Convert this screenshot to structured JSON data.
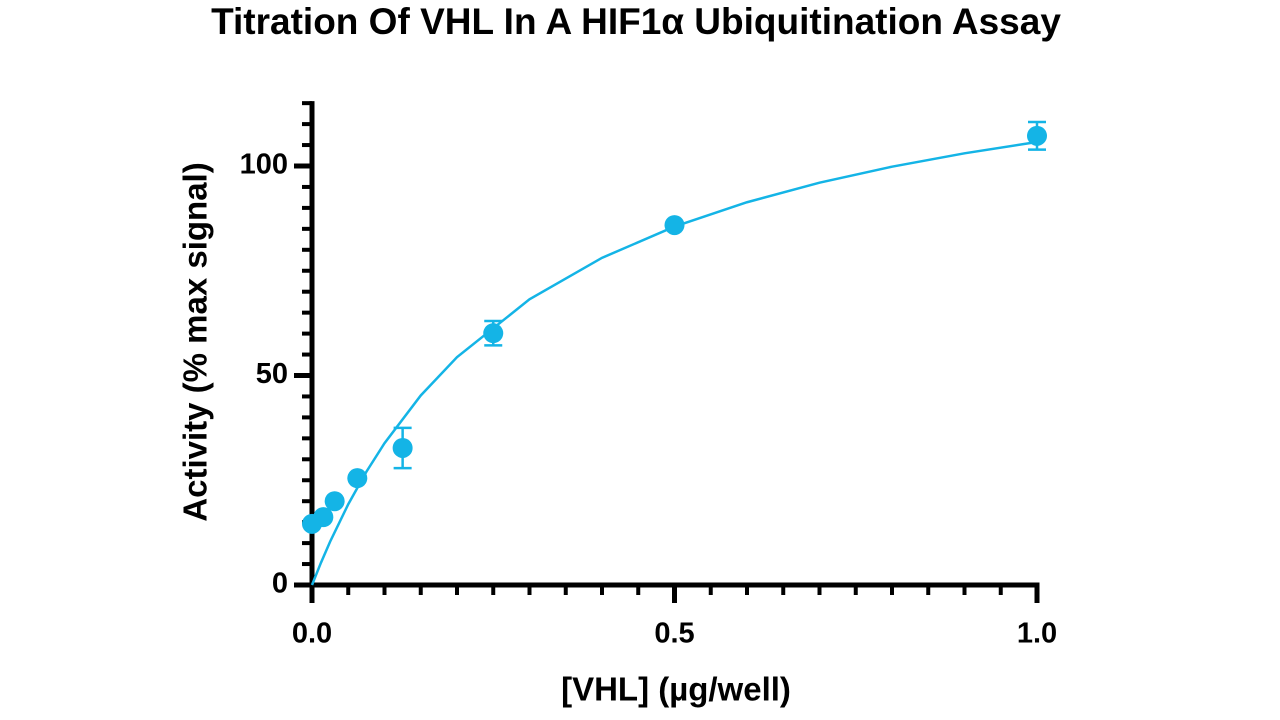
{
  "chart_data": {
    "type": "scatter",
    "title": "Titration Of VHL In A HIF1α Ubiquitination Assay",
    "x_label": "[VHL] (µg/well)",
    "y_label": "Activity (% max signal)",
    "color": "#14b4e6",
    "x": [
      0,
      0.015625,
      0.03125,
      0.0625,
      0.125,
      0.25,
      0.5,
      1.0
    ],
    "values": [
      14.6,
      16.2,
      20.0,
      25.5,
      32.7,
      60.1,
      85.9,
      107.2
    ],
    "errors": [
      null,
      null,
      null,
      null,
      4.8,
      2.9,
      null,
      3.3
    ],
    "fit": {
      "x": [
        0,
        0.0125,
        0.025,
        0.05,
        0.075,
        0.1,
        0.15,
        0.2,
        0.3,
        0.4,
        0.5,
        0.6,
        0.7,
        0.8,
        0.9,
        1.0
      ],
      "y": [
        0,
        5.38,
        10.36,
        19.28,
        27.03,
        33.84,
        45.23,
        54.38,
        68.18,
        78.08,
        85.54,
        91.35,
        96.02,
        99.84,
        103.03,
        105.73
      ]
    },
    "xlim": [
      0,
      1
    ],
    "ylim": [
      0,
      115
    ],
    "xticks": [
      {
        "value": 0,
        "label": "0.0"
      },
      0.5,
      {
        "value": 1,
        "label": "1.0"
      }
    ],
    "yticks": [
      0,
      50,
      100
    ],
    "xminor": 0.05,
    "yminor": 5
  }
}
